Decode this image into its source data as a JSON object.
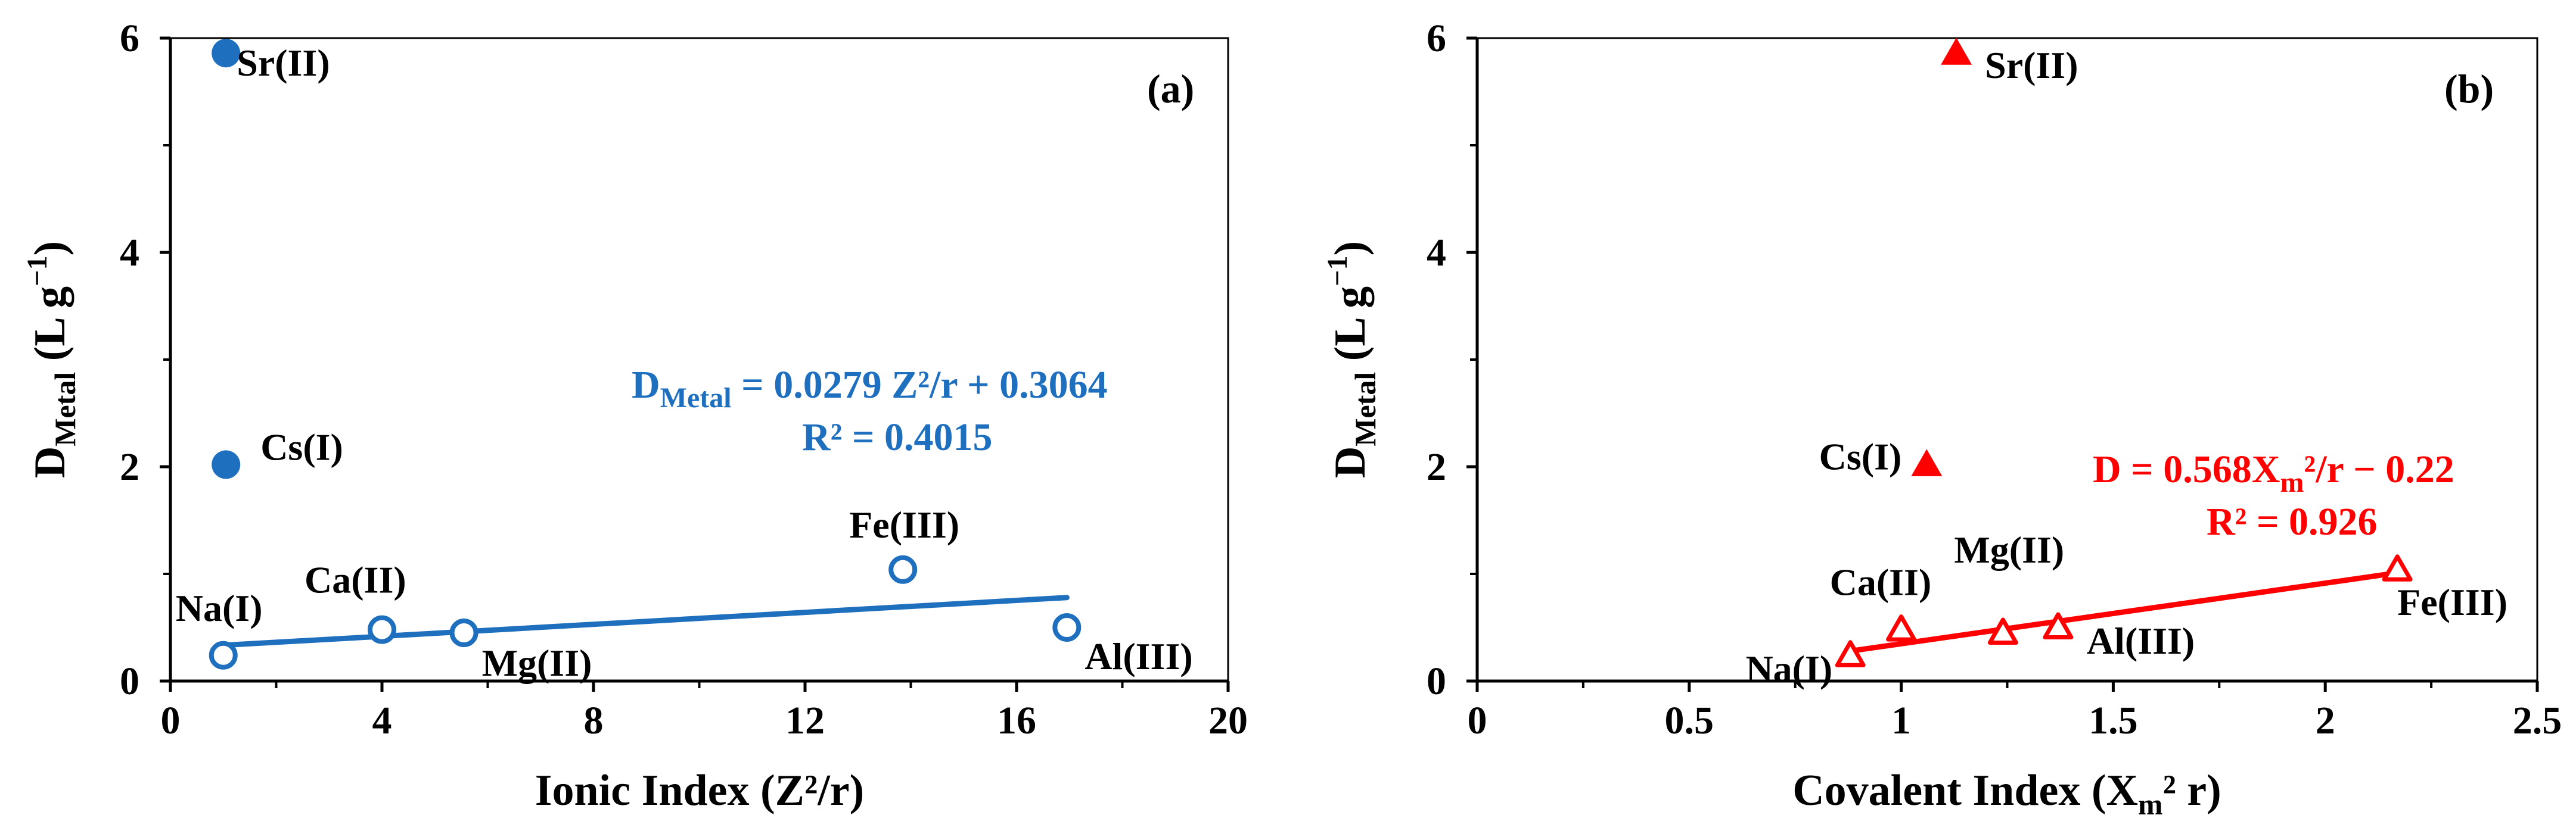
{
  "chart_data": [
    {
      "type": "scatter",
      "panel_label": "(a)",
      "xlabel": "Ionic Index (Z²/r)",
      "ylabel": {
        "main": "D",
        "sub": "Metal",
        "unit": " (L g",
        "sup": "−1",
        "close": ")"
      },
      "xlim": [
        0,
        20
      ],
      "ylim": [
        0,
        6
      ],
      "xticks": [
        0,
        4,
        8,
        12,
        16,
        20
      ],
      "yticks": [
        0,
        2,
        4,
        6
      ],
      "color": "#1F6FBF",
      "series": [
        {
          "marker": "filled-circle",
          "points": [
            {
              "x": 1.05,
              "y": 5.86,
              "label": "Sr(II)"
            },
            {
              "x": 1.05,
              "y": 2.02,
              "label": "Cs(I)"
            }
          ]
        },
        {
          "marker": "open-circle",
          "points": [
            {
              "x": 1.0,
              "y": 0.24,
              "label": "Na(I)"
            },
            {
              "x": 4.0,
              "y": 0.48,
              "label": "Ca(II)"
            },
            {
              "x": 5.55,
              "y": 0.45,
              "label": "Mg(II)"
            },
            {
              "x": 13.85,
              "y": 1.04,
              "label": "Fe(III)"
            },
            {
              "x": 16.95,
              "y": 0.5,
              "label": "Al(III)"
            }
          ]
        }
      ],
      "trendline": {
        "x": [
          1.0,
          16.95
        ],
        "y": [
          0.334,
          0.779
        ]
      },
      "equation": {
        "lhs_main": "D",
        "lhs_sub": "Metal",
        "rhs": " = 0.0279 Z²/r + 0.3064",
        "r2": "R² = 0.4015"
      }
    },
    {
      "type": "scatter",
      "panel_label": "(b)",
      "xlabel": {
        "main": "Covalent Index (X",
        "sub": "m",
        "rest": "² r)"
      },
      "ylabel": {
        "main": "D",
        "sub": "Metal",
        "unit": " (L g",
        "sup": "−1",
        "close": ")"
      },
      "xlim": [
        0,
        2.5
      ],
      "ylim": [
        0,
        6
      ],
      "xticks": [
        0,
        0.5,
        1,
        1.5,
        2,
        2.5
      ],
      "yticks": [
        0,
        2,
        4,
        6
      ],
      "color": "#FF0000",
      "series": [
        {
          "marker": "filled-triangle",
          "points": [
            {
              "x": 1.13,
              "y": 5.86,
              "label": "Sr(II)"
            },
            {
              "x": 1.06,
              "y": 2.02,
              "label": "Cs(I)"
            }
          ]
        },
        {
          "marker": "open-triangle",
          "points": [
            {
              "x": 0.88,
              "y": 0.24,
              "label": "Na(I)"
            },
            {
              "x": 1.0,
              "y": 0.48,
              "label": "Ca(II)"
            },
            {
              "x": 1.24,
              "y": 0.45,
              "label": "Mg(II)"
            },
            {
              "x": 1.37,
              "y": 0.5,
              "label": "Al(III)"
            },
            {
              "x": 2.17,
              "y": 1.04,
              "label": "Fe(III)"
            }
          ]
        }
      ],
      "trendline": {
        "x": [
          0.88,
          2.17
        ],
        "y": [
          0.28,
          1.01
        ]
      },
      "equation": {
        "lhs": "D = 0.568X",
        "sub": "m",
        "rhs": "²/r − 0.22",
        "r2": "R² = 0.926"
      }
    }
  ]
}
